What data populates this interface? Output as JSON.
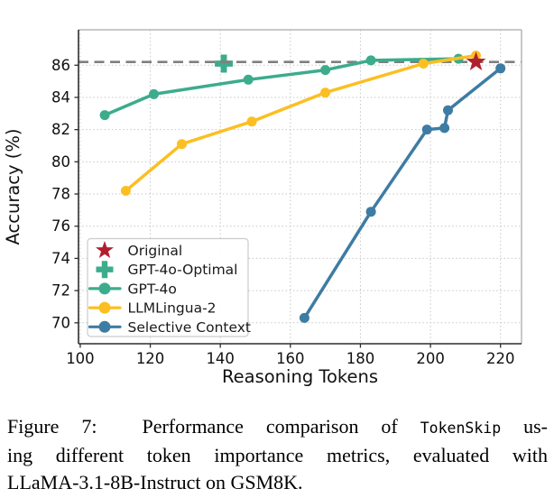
{
  "chart_data": {
    "type": "line",
    "title": "",
    "xlabel": "Reasoning Tokens",
    "ylabel": "Accuracy (%)",
    "xlim": [
      99.5,
      226.0
    ],
    "ylim": [
      68.7,
      88.2
    ],
    "xticks": [
      100,
      120,
      140,
      160,
      180,
      200,
      220
    ],
    "yticks": [
      70,
      72,
      74,
      76,
      78,
      80,
      82,
      84,
      86
    ],
    "grid": true,
    "grid_color": "#c6c6c6",
    "legend_position": "lower left",
    "reference_line": {
      "y": 86.2,
      "color": "#7f7f7f",
      "style": "dashed"
    },
    "series": [
      {
        "name": "GPT-4o",
        "marker": "circle",
        "color": "#3cac8c",
        "points": [
          [
            107,
            82.9
          ],
          [
            121,
            84.2
          ],
          [
            148,
            85.1
          ],
          [
            170,
            85.7
          ],
          [
            183,
            86.3
          ],
          [
            208,
            86.4
          ]
        ]
      },
      {
        "name": "LLMLingua-2",
        "marker": "circle",
        "color": "#fcbf22",
        "points": [
          [
            113,
            78.2
          ],
          [
            129,
            81.1
          ],
          [
            149,
            82.5
          ],
          [
            170,
            84.3
          ],
          [
            198,
            86.1
          ],
          [
            213,
            86.6
          ]
        ]
      },
      {
        "name": "Selective Context",
        "marker": "circle",
        "color": "#3e7ca3",
        "points": [
          [
            164,
            70.3
          ],
          [
            183,
            76.9
          ],
          [
            199,
            82.0
          ],
          [
            204,
            82.1
          ],
          [
            205,
            83.2
          ],
          [
            220,
            85.8
          ]
        ]
      }
    ],
    "scatter": [
      {
        "name": "Original",
        "marker": "star",
        "color": "#b01f2f",
        "point": [
          213,
          86.2
        ]
      },
      {
        "name": "GPT-4o-Optimal",
        "marker": "plus",
        "color": "#3cac8c",
        "point": [
          141,
          86.1
        ]
      }
    ],
    "legend_order": [
      "Original",
      "GPT-4o-Optimal",
      "GPT-4o",
      "LLMLingua-2",
      "Selective Context"
    ],
    "axis_text_color": "#111111",
    "spine_dark_color": "#2d2d2d",
    "spine_light_color": "#ababab"
  },
  "caption": {
    "line1_pre": "Figure 7:  Performance comparison of ",
    "line1_code": "TokenSkip",
    "line1_post": " us-",
    "line2": "ing different token importance metrics, evaluated with",
    "line3": "LLaMA-3.1-8B-Instruct on GSM8K."
  }
}
